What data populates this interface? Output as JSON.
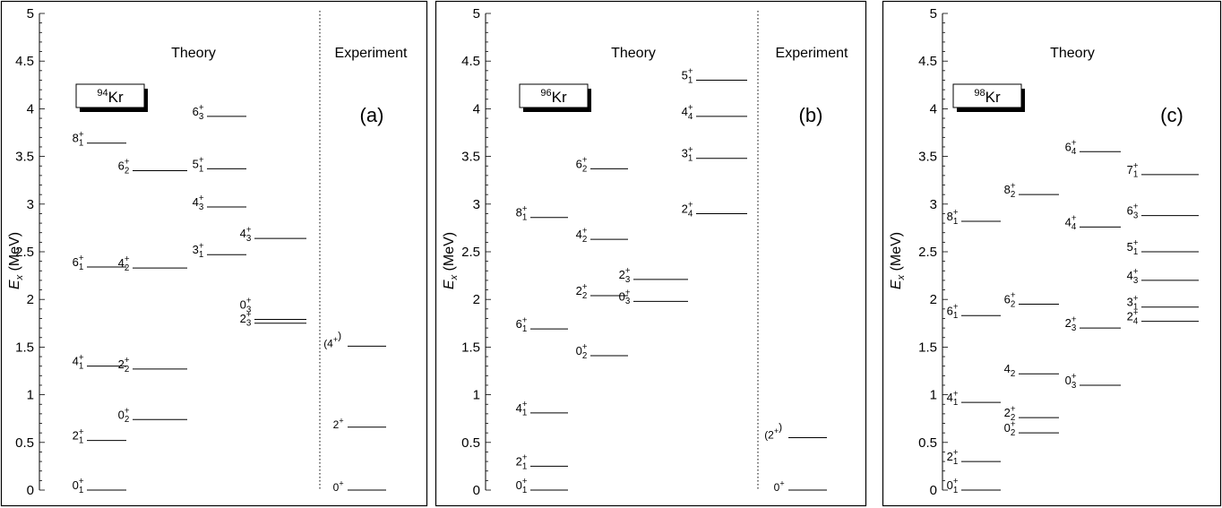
{
  "chart_data": [
    {
      "type": "level-scheme",
      "panel_label": "(a)",
      "nucleus": {
        "mass": "94",
        "symbol": "Kr"
      },
      "ylabel": {
        "main": "E",
        "sub": "x",
        "unit": "(MeV)"
      },
      "ylim": [
        0,
        5
      ],
      "yticks": [
        "0",
        "0.5",
        "1",
        "1.5",
        "2",
        "2.5",
        "3",
        "3.5",
        "4",
        "4.5",
        "5"
      ],
      "theory_title": "Theory",
      "experiment_title": "Experiment",
      "theory_levels": [
        {
          "col": 0,
          "energy": 0.0,
          "label": {
            "base": "0",
            "sup": "+",
            "sub": "1"
          }
        },
        {
          "col": 0,
          "energy": 0.52,
          "label": {
            "base": "2",
            "sup": "+",
            "sub": "1"
          }
        },
        {
          "col": 0,
          "energy": 1.3,
          "label": {
            "base": "4",
            "sup": "+",
            "sub": "1"
          }
        },
        {
          "col": 0,
          "energy": 2.34,
          "label": {
            "base": "6",
            "sup": "+",
            "sub": "1"
          }
        },
        {
          "col": 0,
          "energy": 3.64,
          "label": {
            "base": "8",
            "sup": "+",
            "sub": "1"
          }
        },
        {
          "col": 1,
          "energy": 0.74,
          "label": {
            "base": "0",
            "sup": "+",
            "sub": "2"
          }
        },
        {
          "col": 1,
          "energy": 1.27,
          "label": {
            "base": "2",
            "sup": "+",
            "sub": "2"
          }
        },
        {
          "col": 1,
          "energy": 2.33,
          "label": {
            "base": "4",
            "sup": "+",
            "sub": "2"
          }
        },
        {
          "col": 1,
          "energy": 3.35,
          "label": {
            "base": "6",
            "sup": "+",
            "sub": "2"
          }
        },
        {
          "col": 2,
          "energy": 2.47,
          "label": {
            "base": "3",
            "sup": "+",
            "sub": "1"
          }
        },
        {
          "col": 2,
          "energy": 2.97,
          "label": {
            "base": "4",
            "sup": "+",
            "sub": "3"
          }
        },
        {
          "col": 2,
          "energy": 3.37,
          "label": {
            "base": "5",
            "sup": "+",
            "sub": "1"
          }
        },
        {
          "col": 2,
          "energy": 3.92,
          "label": {
            "base": "6",
            "sup": "+",
            "sub": "3"
          }
        },
        {
          "col": 3,
          "energy": 1.75,
          "label": {
            "base": "2",
            "sup": "+",
            "sub": "3"
          }
        },
        {
          "col": 3,
          "energy": 1.79,
          "label": {
            "base": "0",
            "sup": "+",
            "sub": "3"
          },
          "label_offset": "above"
        },
        {
          "col": 3,
          "energy": 2.64,
          "label": {
            "base": "4",
            "sup": "+",
            "sub": "3"
          }
        }
      ],
      "experiment_levels": [
        {
          "energy": 0.0,
          "label": {
            "base": "0",
            "sup": "+",
            "sub": ""
          }
        },
        {
          "energy": 0.66,
          "label": {
            "base": "2",
            "sup": "+",
            "sub": ""
          }
        },
        {
          "energy": 1.51,
          "label": {
            "base": "(4",
            "sup": "+",
            "sub": "",
            "tail": ")"
          }
        }
      ]
    },
    {
      "type": "level-scheme",
      "panel_label": "(b)",
      "nucleus": {
        "mass": "96",
        "symbol": "Kr"
      },
      "ylabel": {
        "main": "E",
        "sub": "x",
        "unit": "(MeV)"
      },
      "ylim": [
        0,
        5
      ],
      "yticks": [
        "0",
        "0.5",
        "1",
        "1.5",
        "2",
        "2.5",
        "3",
        "3.5",
        "4",
        "4.5",
        "5"
      ],
      "theory_title": "Theory",
      "experiment_title": "Experiment",
      "theory_levels": [
        {
          "col": 0,
          "energy": 0.0,
          "label": {
            "base": "0",
            "sup": "+",
            "sub": "1"
          }
        },
        {
          "col": 0,
          "energy": 0.25,
          "label": {
            "base": "2",
            "sup": "+",
            "sub": "1"
          }
        },
        {
          "col": 0,
          "energy": 0.81,
          "label": {
            "base": "4",
            "sup": "+",
            "sub": "1"
          }
        },
        {
          "col": 0,
          "energy": 1.69,
          "label": {
            "base": "6",
            "sup": "+",
            "sub": "1"
          }
        },
        {
          "col": 0,
          "energy": 2.86,
          "label": {
            "base": "8",
            "sup": "+",
            "sub": "1"
          }
        },
        {
          "col": 1,
          "energy": 1.41,
          "label": {
            "base": "0",
            "sup": "+",
            "sub": "2"
          }
        },
        {
          "col": 1,
          "energy": 2.04,
          "label": {
            "base": "2",
            "sup": "+",
            "sub": "2"
          }
        },
        {
          "col": 1,
          "energy": 2.63,
          "label": {
            "base": "4",
            "sup": "+",
            "sub": "2"
          }
        },
        {
          "col": 1,
          "energy": 3.37,
          "label": {
            "base": "6",
            "sup": "+",
            "sub": "2"
          }
        },
        {
          "col": 2,
          "energy": 1.98,
          "label": {
            "base": "0",
            "sup": "+",
            "sub": "3"
          }
        },
        {
          "col": 2,
          "energy": 2.21,
          "label": {
            "base": "2",
            "sup": "+",
            "sub": "3"
          }
        },
        {
          "col": 3,
          "energy": 2.9,
          "label": {
            "base": "2",
            "sup": "+",
            "sub": "4"
          }
        },
        {
          "col": 3,
          "energy": 3.48,
          "label": {
            "base": "3",
            "sup": "+",
            "sub": "1"
          }
        },
        {
          "col": 3,
          "energy": 3.92,
          "label": {
            "base": "4",
            "sup": "+",
            "sub": "4"
          }
        },
        {
          "col": 3,
          "energy": 4.3,
          "label": {
            "base": "5",
            "sup": "+",
            "sub": "1"
          }
        }
      ],
      "experiment_levels": [
        {
          "energy": 0.0,
          "label": {
            "base": "0",
            "sup": "+",
            "sub": ""
          }
        },
        {
          "energy": 0.55,
          "label": {
            "base": "(2",
            "sup": "+",
            "sub": "",
            "tail": ")"
          }
        }
      ]
    },
    {
      "type": "level-scheme",
      "panel_label": "(c)",
      "nucleus": {
        "mass": "98",
        "symbol": "Kr"
      },
      "ylabel": {
        "main": "E",
        "sub": "x",
        "unit": "(MeV)"
      },
      "ylim": [
        0,
        5
      ],
      "yticks": [
        "0",
        "0.5",
        "1",
        "1.5",
        "2",
        "2.5",
        "3",
        "3.5",
        "4",
        "4.5",
        "5"
      ],
      "theory_title": "Theory",
      "experiment_title": "",
      "theory_levels": [
        {
          "col": 0,
          "energy": 0.0,
          "label": {
            "base": "0",
            "sup": "+",
            "sub": "1"
          }
        },
        {
          "col": 0,
          "energy": 0.3,
          "label": {
            "base": "2",
            "sup": "+",
            "sub": "1"
          }
        },
        {
          "col": 0,
          "energy": 0.92,
          "label": {
            "base": "4",
            "sup": "+",
            "sub": "1"
          }
        },
        {
          "col": 0,
          "energy": 1.83,
          "label": {
            "base": "6",
            "sup": "+",
            "sub": "1"
          }
        },
        {
          "col": 0,
          "energy": 2.82,
          "label": {
            "base": "8",
            "sup": "+",
            "sub": "1"
          }
        },
        {
          "col": 1,
          "energy": 0.6,
          "label": {
            "base": "0",
            "sup": "+",
            "sub": "2"
          }
        },
        {
          "col": 1,
          "energy": 0.76,
          "label": {
            "base": "2",
            "sup": "+",
            "sub": "2"
          }
        },
        {
          "col": 1,
          "energy": 1.22,
          "label": {
            "base": "4",
            "sup": "",
            "sub": "2"
          }
        },
        {
          "col": 1,
          "energy": 1.95,
          "label": {
            "base": "6",
            "sup": "+",
            "sub": "2"
          }
        },
        {
          "col": 1,
          "energy": 3.1,
          "label": {
            "base": "8",
            "sup": "+",
            "sub": "2"
          }
        },
        {
          "col": 2,
          "energy": 1.1,
          "label": {
            "base": "0",
            "sup": "+",
            "sub": "3"
          }
        },
        {
          "col": 2,
          "energy": 1.7,
          "label": {
            "base": "2",
            "sup": "+",
            "sub": "3"
          }
        },
        {
          "col": 2,
          "energy": 2.76,
          "label": {
            "base": "4",
            "sup": "+",
            "sub": "4"
          }
        },
        {
          "col": 2,
          "energy": 3.55,
          "label": {
            "base": "6",
            "sup": "+",
            "sub": "4"
          }
        },
        {
          "col": 3,
          "energy": 1.77,
          "label": {
            "base": "2",
            "sup": "+",
            "sub": "4"
          }
        },
        {
          "col": 3,
          "energy": 1.92,
          "label": {
            "base": "3",
            "sup": "+",
            "sub": "1"
          }
        },
        {
          "col": 3,
          "energy": 2.2,
          "label": {
            "base": "4",
            "sup": "+",
            "sub": "3"
          }
        },
        {
          "col": 3,
          "energy": 2.5,
          "label": {
            "base": "5",
            "sup": "+",
            "sub": "1"
          }
        },
        {
          "col": 3,
          "energy": 2.88,
          "label": {
            "base": "6",
            "sup": "+",
            "sub": "3"
          }
        },
        {
          "col": 3,
          "energy": 3.31,
          "label": {
            "base": "7",
            "sup": "+",
            "sub": "1"
          }
        }
      ],
      "experiment_levels": []
    }
  ]
}
